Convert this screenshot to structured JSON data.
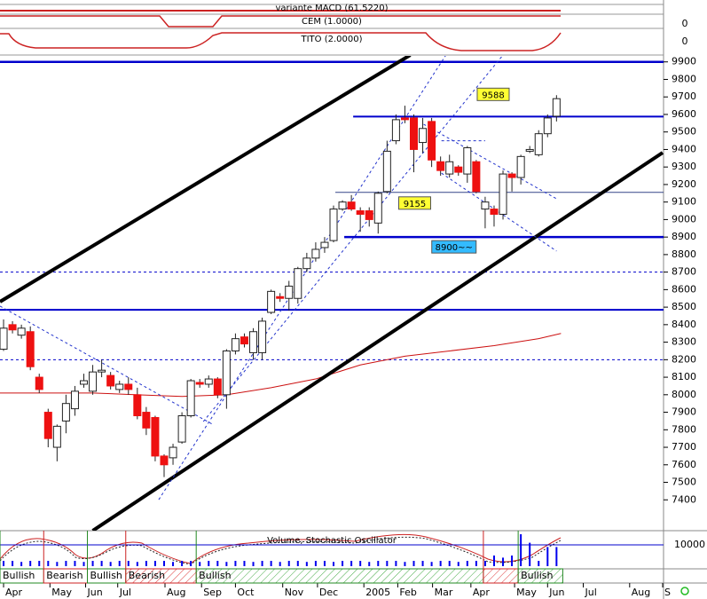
{
  "panels": [
    {
      "title": "variante MACD (61.5220)"
    },
    {
      "title": "CEM (1.0000)",
      "ytick": 0
    },
    {
      "title": "TITO (2.0000)",
      "ytick": 0
    }
  ],
  "chart_data": {
    "type": "candlestick",
    "xlim": [
      -0.4,
      74
    ],
    "xticks": [
      {
        "value": 0,
        "label": "Apr"
      },
      {
        "value": 5.2,
        "label": "May"
      },
      {
        "value": 9.2,
        "label": "Jun"
      },
      {
        "value": 12.8,
        "label": "Jul"
      },
      {
        "value": 18.1,
        "label": "Aug"
      },
      {
        "value": 22.2,
        "label": "Sep"
      },
      {
        "value": 26,
        "label": "Oct"
      },
      {
        "value": 31.3,
        "label": "Nov"
      },
      {
        "value": 35.2,
        "label": "Dec"
      },
      {
        "value": 40.4,
        "label": "2005"
      },
      {
        "value": 44.2,
        "label": "Feb"
      },
      {
        "value": 48.1,
        "label": "Mar"
      },
      {
        "value": 52.4,
        "label": "Apr"
      },
      {
        "value": 57.3,
        "label": "May"
      },
      {
        "value": 61,
        "label": "Jun"
      },
      {
        "value": 65,
        "label": "Jul"
      },
      {
        "value": 70.2,
        "label": "Aug"
      },
      {
        "value": 73.9,
        "label": "S"
      }
    ],
    "ylim": [
      7300,
      10000
    ],
    "yticks": [
      7400,
      7500,
      7600,
      7700,
      7800,
      7900,
      8000,
      8100,
      8200,
      8300,
      8400,
      8500,
      8600,
      8700,
      8800,
      8900,
      9000,
      9100,
      9200,
      9300,
      9400,
      9500,
      9600,
      9700,
      9800,
      9900
    ],
    "up_color": "#ffffff",
    "down_color": "#ee1111",
    "candles": [
      {
        "x": 0,
        "o": 8260,
        "h": 8430,
        "l": 8250,
        "c": 8380
      },
      {
        "x": 1,
        "o": 8400,
        "h": 8420,
        "l": 8350,
        "c": 8370
      },
      {
        "x": 2,
        "o": 8340,
        "h": 8400,
        "l": 8320,
        "c": 8380
      },
      {
        "x": 3,
        "o": 8360,
        "h": 8390,
        "l": 8140,
        "c": 8160
      },
      {
        "x": 4,
        "o": 8100,
        "h": 8120,
        "l": 8010,
        "c": 8030
      },
      {
        "x": 5,
        "o": 7900,
        "h": 7920,
        "l": 7700,
        "c": 7750
      },
      {
        "x": 6,
        "o": 7700,
        "h": 7830,
        "l": 7620,
        "c": 7820
      },
      {
        "x": 7,
        "o": 7850,
        "h": 8000,
        "l": 7780,
        "c": 7950
      },
      {
        "x": 8,
        "o": 7920,
        "h": 8050,
        "l": 7880,
        "c": 8020
      },
      {
        "x": 9,
        "o": 8060,
        "h": 8120,
        "l": 8040,
        "c": 8080
      },
      {
        "x": 10,
        "o": 8020,
        "h": 8170,
        "l": 8000,
        "c": 8130
      },
      {
        "x": 11,
        "o": 8130,
        "h": 8200,
        "l": 8100,
        "c": 8140
      },
      {
        "x": 12,
        "o": 8110,
        "h": 8130,
        "l": 8030,
        "c": 8050
      },
      {
        "x": 13,
        "o": 8030,
        "h": 8080,
        "l": 8010,
        "c": 8060
      },
      {
        "x": 14,
        "o": 8060,
        "h": 8100,
        "l": 8000,
        "c": 8030
      },
      {
        "x": 15,
        "o": 8000,
        "h": 8040,
        "l": 7860,
        "c": 7880
      },
      {
        "x": 16,
        "o": 7900,
        "h": 7930,
        "l": 7770,
        "c": 7810
      },
      {
        "x": 17,
        "o": 7870,
        "h": 7880,
        "l": 7620,
        "c": 7650
      },
      {
        "x": 18,
        "o": 7650,
        "h": 7660,
        "l": 7530,
        "c": 7600
      },
      {
        "x": 19,
        "o": 7640,
        "h": 7720,
        "l": 7600,
        "c": 7700
      },
      {
        "x": 20,
        "o": 7730,
        "h": 7900,
        "l": 7720,
        "c": 7880
      },
      {
        "x": 21,
        "o": 7880,
        "h": 8090,
        "l": 7870,
        "c": 8080
      },
      {
        "x": 22,
        "o": 8070,
        "h": 8090,
        "l": 8040,
        "c": 8060
      },
      {
        "x": 23,
        "o": 8060,
        "h": 8110,
        "l": 8040,
        "c": 8090
      },
      {
        "x": 24,
        "o": 8090,
        "h": 8100,
        "l": 7980,
        "c": 8000
      },
      {
        "x": 25,
        "o": 8000,
        "h": 8260,
        "l": 7920,
        "c": 8250
      },
      {
        "x": 26,
        "o": 8250,
        "h": 8350,
        "l": 8230,
        "c": 8320
      },
      {
        "x": 27,
        "o": 8330,
        "h": 8350,
        "l": 8270,
        "c": 8290
      },
      {
        "x": 28,
        "o": 8240,
        "h": 8380,
        "l": 8200,
        "c": 8360
      },
      {
        "x": 29,
        "o": 8240,
        "h": 8440,
        "l": 8200,
        "c": 8420
      },
      {
        "x": 30,
        "o": 8470,
        "h": 8600,
        "l": 8460,
        "c": 8590
      },
      {
        "x": 31,
        "o": 8560,
        "h": 8580,
        "l": 8530,
        "c": 8550
      },
      {
        "x": 32,
        "o": 8550,
        "h": 8650,
        "l": 8480,
        "c": 8620
      },
      {
        "x": 33,
        "o": 8550,
        "h": 8730,
        "l": 8520,
        "c": 8720
      },
      {
        "x": 34,
        "o": 8720,
        "h": 8810,
        "l": 8700,
        "c": 8780
      },
      {
        "x": 35,
        "o": 8780,
        "h": 8870,
        "l": 8760,
        "c": 8830
      },
      {
        "x": 36,
        "o": 8840,
        "h": 8900,
        "l": 8810,
        "c": 8870
      },
      {
        "x": 37,
        "o": 8880,
        "h": 9080,
        "l": 8870,
        "c": 9060
      },
      {
        "x": 38,
        "o": 9060,
        "h": 9110,
        "l": 9050,
        "c": 9100
      },
      {
        "x": 39,
        "o": 9100,
        "h": 9140,
        "l": 9050,
        "c": 9060
      },
      {
        "x": 40,
        "o": 9050,
        "h": 9070,
        "l": 8930,
        "c": 9030
      },
      {
        "x": 41,
        "o": 9050,
        "h": 9070,
        "l": 8960,
        "c": 9000
      },
      {
        "x": 42,
        "o": 8980,
        "h": 9160,
        "l": 8920,
        "c": 9150
      },
      {
        "x": 43,
        "o": 9160,
        "h": 9450,
        "l": 9150,
        "c": 9390
      },
      {
        "x": 44,
        "o": 9450,
        "h": 9600,
        "l": 9430,
        "c": 9570
      },
      {
        "x": 45,
        "o": 9580,
        "h": 9650,
        "l": 9550,
        "c": 9570
      },
      {
        "x": 46,
        "o": 9580,
        "h": 9600,
        "l": 9270,
        "c": 9400
      },
      {
        "x": 47,
        "o": 9440,
        "h": 9580,
        "l": 9380,
        "c": 9520
      },
      {
        "x": 48,
        "o": 9560,
        "h": 9580,
        "l": 9300,
        "c": 9340
      },
      {
        "x": 49,
        "o": 9330,
        "h": 9360,
        "l": 9250,
        "c": 9280
      },
      {
        "x": 50,
        "o": 9260,
        "h": 9370,
        "l": 9240,
        "c": 9330
      },
      {
        "x": 51,
        "o": 9300,
        "h": 9310,
        "l": 9250,
        "c": 9270
      },
      {
        "x": 52,
        "o": 9260,
        "h": 9420,
        "l": 9210,
        "c": 9410
      },
      {
        "x": 53,
        "o": 9330,
        "h": 9340,
        "l": 9150,
        "c": 9160
      },
      {
        "x": 54,
        "o": 9060,
        "h": 9130,
        "l": 8950,
        "c": 9100
      },
      {
        "x": 55,
        "o": 9060,
        "h": 9080,
        "l": 8960,
        "c": 9030
      },
      {
        "x": 56,
        "o": 9030,
        "h": 9280,
        "l": 9000,
        "c": 9260
      },
      {
        "x": 57,
        "o": 9260,
        "h": 9270,
        "l": 9160,
        "c": 9240
      },
      {
        "x": 58,
        "o": 9240,
        "h": 9370,
        "l": 9200,
        "c": 9360
      },
      {
        "x": 59,
        "o": 9390,
        "h": 9420,
        "l": 9380,
        "c": 9400
      },
      {
        "x": 60,
        "o": 9370,
        "h": 9510,
        "l": 9360,
        "c": 9490
      },
      {
        "x": 61,
        "o": 9490,
        "h": 9600,
        "l": 9470,
        "c": 9580
      },
      {
        "x": 62,
        "o": 9590,
        "h": 9710,
        "l": 9560,
        "c": 9690
      }
    ],
    "levels": [
      {
        "value": 9900,
        "from": -0.4,
        "color": "#0000cc",
        "width": 2.5
      },
      {
        "value": 9588,
        "from": 39.2,
        "color": "#0000cc",
        "width": 2
      },
      {
        "value": 9155,
        "from": 37.2,
        "color": "#334488",
        "width": 1
      },
      {
        "value": 8900,
        "from": 38.2,
        "color": "#0000cc",
        "width": 2.5
      },
      {
        "value": 8700,
        "from": -0.4,
        "color": "#0000cc",
        "width": 1,
        "dashed": true
      },
      {
        "value": 8485,
        "from": -0.4,
        "color": "#0000cc",
        "width": 2
      },
      {
        "value": 8200,
        "from": -0.4,
        "color": "#0000cc",
        "width": 1,
        "dashed": true
      }
    ],
    "annotations": [
      {
        "text": "9588",
        "x": 54.9,
        "value": 9588,
        "color": "#ffff33"
      },
      {
        "text": "9155",
        "x": 46.1,
        "value": 9155,
        "color": "#ffff33"
      },
      {
        "text": "8900~~",
        "x": 50.5,
        "value": 8900,
        "color": "#33bbff"
      }
    ],
    "trendlines": [
      {
        "points": [
          [
            -0.4,
            8531
          ],
          [
            45.6,
            9939
          ]
        ],
        "color": "#000000",
        "width": 4
      },
      {
        "points": [
          [
            10,
            7224
          ],
          [
            73.9,
            9382
          ]
        ],
        "color": "#000000",
        "width": 4
      },
      {
        "points": [
          [
            17.4,
            7401
          ],
          [
            49.6,
            9939
          ]
        ],
        "color": "#2233cc",
        "width": 1,
        "dashed": true
      },
      {
        "points": [
          [
            22.4,
            7847
          ],
          [
            56,
            9939
          ]
        ],
        "color": "#2233cc",
        "width": 1,
        "dashed": true
      },
      {
        "points": [
          [
            -0.4,
            8506
          ],
          [
            23.4,
            7832
          ]
        ],
        "color": "#2233cc",
        "width": 1,
        "dashed": true
      },
      {
        "points": [
          [
            47.1,
            9544
          ],
          [
            62.2,
            9113
          ]
        ],
        "color": "#2233cc",
        "width": 1,
        "dashed": true
      },
      {
        "points": [
          [
            49.1,
            9265
          ],
          [
            62,
            8820
          ]
        ],
        "color": "#2233cc",
        "width": 1,
        "dashed": true
      },
      {
        "points": [
          [
            49.1,
            9450
          ],
          [
            54,
            9450
          ]
        ],
        "color": "#2233cc",
        "width": 1,
        "dashed": true
      }
    ],
    "moving_average": {
      "color": "#cc1111",
      "x": [
        -0.4,
        5,
        10,
        15,
        20,
        25,
        30,
        35,
        40,
        45,
        50,
        55,
        60,
        62.5
      ],
      "values": [
        8010,
        8010,
        8010,
        8000,
        7990,
        8000,
        8040,
        8090,
        8170,
        8220,
        8250,
        8280,
        8320,
        8350
      ]
    },
    "volume": {
      "title": "Volume, Stochastic Oscillator",
      "ylim": [
        0,
        15000
      ],
      "yticks": [
        10000
      ],
      "color": "#0000ee",
      "values": [
        2500,
        2500,
        2000,
        2500,
        2500,
        2500,
        2000,
        2500,
        2500,
        2000,
        2500,
        2500,
        2000,
        2500,
        2500,
        2000,
        2500,
        2500,
        2500,
        2000,
        2500,
        2500,
        2000,
        2500,
        2500,
        2000,
        2500,
        2500,
        2000,
        2500,
        2500,
        2000,
        2500,
        2500,
        2000,
        2500,
        2500,
        2000,
        2500,
        2500,
        2500,
        2000,
        2500,
        2500,
        2500,
        2000,
        2500,
        2500,
        2000,
        2500,
        2500,
        2000,
        2500,
        2500,
        2500,
        5000,
        4000,
        5000,
        15000,
        11000,
        2500,
        9000,
        9000
      ]
    },
    "signals": [
      {
        "label": "Bullish",
        "from": -0.4,
        "to": 4.5,
        "color": "#228822"
      },
      {
        "label": "Bearish",
        "from": 4.5,
        "to": 9.4,
        "color": "#cc2222"
      },
      {
        "label": "Bullish",
        "from": 9.4,
        "to": 13.7,
        "color": "#228822"
      },
      {
        "label": "Bearish",
        "from": 13.7,
        "to": 21.6,
        "color": "#cc2222"
      },
      {
        "label": "Bullish",
        "from": 21.6,
        "to": 53.8,
        "color": "#228822"
      },
      {
        "label": null,
        "from": 53.8,
        "to": 57.7,
        "color": "#cc2222"
      },
      {
        "label": "Bullish",
        "from": 57.7,
        "to": 62.7,
        "color": "#228822"
      }
    ]
  }
}
